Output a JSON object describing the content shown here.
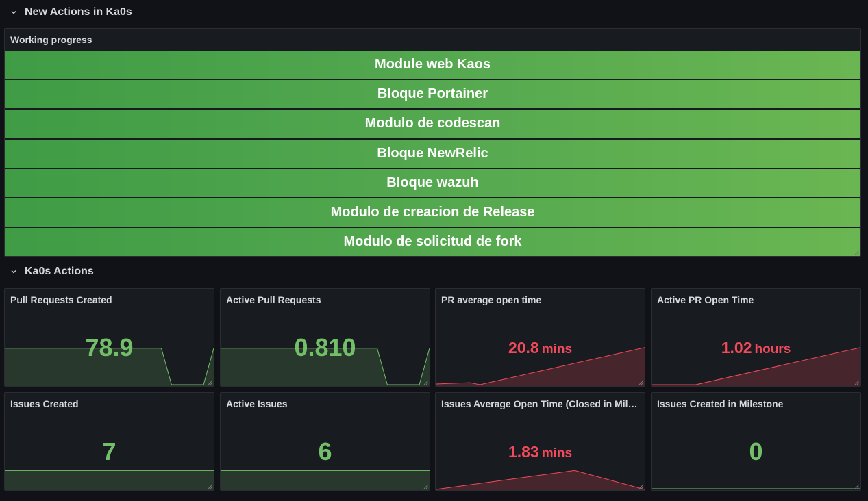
{
  "rows": [
    {
      "title": "New Actions in Ka0s",
      "icon": "chevron-down-icon"
    },
    {
      "title": "Ka0s Actions",
      "icon": "chevron-down-icon"
    }
  ],
  "working_progress": {
    "title": "Working progress",
    "items": [
      "Module web Kaos",
      "Bloque Portainer",
      "Modulo de codescan",
      "Bloque NewRelic",
      "Bloque wazuh",
      "Modulo de creacion de Release",
      "Modulo de solicitud de fork"
    ],
    "color": "#56a64b"
  },
  "stats": [
    {
      "title": "Pull Requests Created",
      "value": "78.9",
      "unit": "",
      "color": "green"
    },
    {
      "title": "Active Pull Requests",
      "value": "0.810",
      "unit": "",
      "color": "green"
    },
    {
      "title": "PR average open time",
      "value": "20.8",
      "unit": "mins",
      "color": "red"
    },
    {
      "title": "Active PR Open Time",
      "value": "1.02",
      "unit": "hours",
      "color": "red"
    },
    {
      "title": "Issues Created",
      "value": "7",
      "unit": "",
      "color": "green"
    },
    {
      "title": "Active Issues",
      "value": "6",
      "unit": "",
      "color": "green"
    },
    {
      "title": "Issues Average Open Time (Closed in Milestone)",
      "value": "1.83",
      "unit": "mins",
      "color": "red"
    },
    {
      "title": "Issues Created in Milestone",
      "value": "0",
      "unit": "",
      "color": "green"
    }
  ],
  "colors": {
    "green": "#73bf69",
    "red": "#f2495c",
    "background": "#111217",
    "panel": "#181b1f"
  }
}
